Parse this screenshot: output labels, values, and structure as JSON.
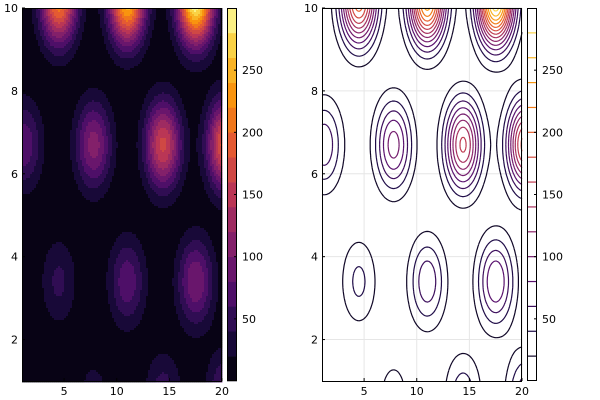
{
  "chart_data": [
    {
      "type": "heatmap",
      "subtype": "filled-contour",
      "title": "",
      "xlabel": "",
      "ylabel": "",
      "xlim": [
        1,
        20
      ],
      "ylim": [
        1,
        10
      ],
      "x_ticks": [
        5,
        10,
        15,
        20
      ],
      "y_ticks": [
        2,
        4,
        6,
        8,
        10
      ],
      "colormap": "inferno",
      "levels": [
        0,
        20,
        40,
        60,
        80,
        100,
        120,
        140,
        160,
        180,
        200,
        220,
        240,
        260,
        280,
        300
      ],
      "colorbar": {
        "ticks": [
          50,
          100,
          150,
          200,
          250
        ],
        "range": [
          0,
          300
        ]
      },
      "peaks": [
        {
          "x": 4.5,
          "y": 10.2,
          "value": 215
        },
        {
          "x": 11.0,
          "y": 10.2,
          "value": 255
        },
        {
          "x": 17.5,
          "y": 10.2,
          "value": 300
        },
        {
          "x": 1.2,
          "y": 6.7,
          "value": 75
        },
        {
          "x": 7.8,
          "y": 6.7,
          "value": 110
        },
        {
          "x": 14.4,
          "y": 6.7,
          "value": 165
        },
        {
          "x": 20.3,
          "y": 6.7,
          "value": 190
        },
        {
          "x": 4.5,
          "y": 3.4,
          "value": 45
        },
        {
          "x": 11.0,
          "y": 3.4,
          "value": 75
        },
        {
          "x": 17.5,
          "y": 3.4,
          "value": 100
        },
        {
          "x": 7.8,
          "y": 0.6,
          "value": 30
        },
        {
          "x": 14.4,
          "y": 0.6,
          "value": 55
        },
        {
          "x": 20.3,
          "y": 0.6,
          "value": 75
        }
      ]
    },
    {
      "type": "heatmap",
      "subtype": "contour-lines",
      "title": "",
      "xlabel": "",
      "ylabel": "",
      "xlim": [
        1,
        20
      ],
      "ylim": [
        1,
        10
      ],
      "x_ticks": [
        5,
        10,
        15,
        20
      ],
      "y_ticks": [
        2,
        4,
        6,
        8,
        10
      ],
      "colormap": "inferno",
      "grid": true,
      "levels": [
        20,
        40,
        60,
        80,
        100,
        120,
        140,
        160,
        180,
        200,
        220,
        240,
        260,
        280
      ],
      "colorbar": {
        "ticks": [
          50,
          100,
          150,
          200,
          250
        ],
        "range": [
          0,
          300
        ]
      },
      "same_field_as": "chart 1"
    }
  ]
}
